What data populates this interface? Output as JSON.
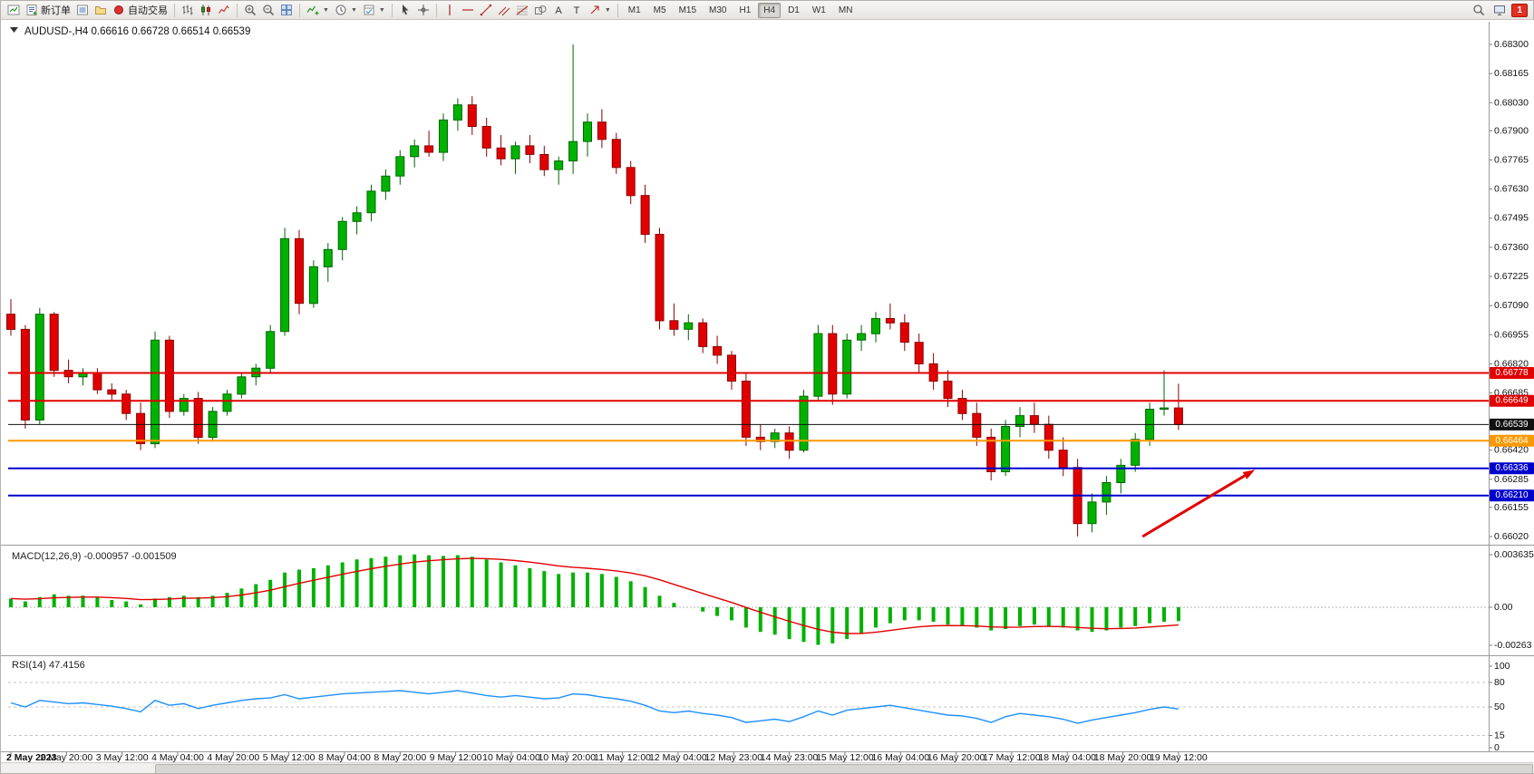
{
  "window": {
    "symbol_title": "AUDUSD-,H4",
    "ohlc_text": "0.66616 0.66728 0.66514 0.66539"
  },
  "toolbar": {
    "groups": [
      [
        {
          "icon": "new-chart"
        },
        {
          "icon": "new-order",
          "label": "新订单"
        },
        {
          "icon": "market-watch"
        },
        {
          "icon": "navigator"
        },
        {
          "icon": "auto-trading",
          "label": "自动交易"
        }
      ],
      [
        {
          "icon": "bar-chart"
        },
        {
          "icon": "candlestick-chart"
        },
        {
          "icon": "line-chart"
        }
      ],
      [
        {
          "icon": "zoom-in"
        },
        {
          "icon": "zoom-out"
        },
        {
          "icon": "tile-windows"
        }
      ],
      [
        {
          "icon": "indicators",
          "dropdown": true
        },
        {
          "icon": "periods",
          "dropdown": true
        },
        {
          "icon": "template",
          "dropdown": true
        }
      ],
      [
        {
          "icon": "cursor"
        },
        {
          "icon": "crosshair"
        }
      ],
      [
        {
          "icon": "vertical-line"
        },
        {
          "icon": "horizontal-line"
        },
        {
          "icon": "trend-line"
        },
        {
          "icon": "channel"
        },
        {
          "icon": "fibonacci"
        },
        {
          "icon": "shapes"
        },
        {
          "icon": "text"
        },
        {
          "icon": "text-label"
        },
        {
          "icon": "arrows",
          "dropdown": true
        }
      ]
    ],
    "timeframes": [
      {
        "label": "M1"
      },
      {
        "label": "M5"
      },
      {
        "label": "M15"
      },
      {
        "label": "M30"
      },
      {
        "label": "H1"
      },
      {
        "label": "H4",
        "active": true
      },
      {
        "label": "D1"
      },
      {
        "label": "W1"
      },
      {
        "label": "MN"
      }
    ],
    "right_icons": [
      {
        "icon": "search"
      },
      {
        "icon": "terminal"
      }
    ],
    "notification_badge": "1"
  },
  "chart_data": {
    "type": "candlestick",
    "title": "AUDUSD-,H4",
    "ohlc_display": "0.66616 0.66728 0.66514 0.66539",
    "bull_color": "#00b200",
    "bear_color": "#e10000",
    "y_axis": {
      "min": 0.6602,
      "max": 0.683,
      "tick_labels": [
        "0.68300",
        "0.68165",
        "0.68030",
        "0.67900",
        "0.67765",
        "0.67630",
        "0.67495",
        "0.67360",
        "0.67225",
        "0.67090",
        "0.66955",
        "0.66820",
        "0.66685",
        "0.66420",
        "0.66285",
        "0.66155",
        "0.66020"
      ]
    },
    "x_axis": {
      "tick_labels": [
        "2 May 2023",
        "2 May 20:00",
        "3 May 12:00",
        "4 May 04:00",
        "4 May 20:00",
        "5 May 12:00",
        "8 May 04:00",
        "8 May 20:00",
        "9 May 12:00",
        "10 May 04:00",
        "10 May 20:00",
        "11 May 12:00",
        "12 May 04:00",
        "12 May 23:00",
        "14 May 23:00",
        "15 May 12:00",
        "16 May 04:00",
        "16 May 20:00",
        "17 May 12:00",
        "18 May 04:00",
        "18 May 20:00",
        "19 May 12:00"
      ]
    },
    "candles": [
      [
        0.6705,
        0.6712,
        0.6695,
        0.6698
      ],
      [
        0.6698,
        0.67,
        0.6652,
        0.6656
      ],
      [
        0.6656,
        0.6708,
        0.6654,
        0.6705
      ],
      [
        0.6705,
        0.6706,
        0.6676,
        0.6679
      ],
      [
        0.6679,
        0.6684,
        0.6673,
        0.6676
      ],
      [
        0.6676,
        0.668,
        0.6672,
        0.6678
      ],
      [
        0.6678,
        0.668,
        0.6668,
        0.667
      ],
      [
        0.667,
        0.6673,
        0.6665,
        0.6668
      ],
      [
        0.6668,
        0.667,
        0.6656,
        0.6659
      ],
      [
        0.6659,
        0.6664,
        0.6642,
        0.6645
      ],
      [
        0.6645,
        0.6697,
        0.6643,
        0.6693
      ],
      [
        0.6693,
        0.6695,
        0.6657,
        0.666
      ],
      [
        0.666,
        0.6668,
        0.6658,
        0.6666
      ],
      [
        0.6666,
        0.6669,
        0.6645,
        0.6648
      ],
      [
        0.6648,
        0.6662,
        0.6646,
        0.666
      ],
      [
        0.666,
        0.667,
        0.6658,
        0.6668
      ],
      [
        0.6668,
        0.6678,
        0.6666,
        0.6676
      ],
      [
        0.6676,
        0.6682,
        0.6672,
        0.668
      ],
      [
        0.668,
        0.67,
        0.6678,
        0.6697
      ],
      [
        0.6697,
        0.6745,
        0.6695,
        0.674
      ],
      [
        0.674,
        0.6744,
        0.6705,
        0.671
      ],
      [
        0.671,
        0.673,
        0.6708,
        0.6727
      ],
      [
        0.6727,
        0.6738,
        0.672,
        0.6735
      ],
      [
        0.6735,
        0.675,
        0.673,
        0.6748
      ],
      [
        0.6748,
        0.6755,
        0.6742,
        0.6752
      ],
      [
        0.6752,
        0.6765,
        0.6748,
        0.6762
      ],
      [
        0.6762,
        0.6772,
        0.6758,
        0.6769
      ],
      [
        0.6769,
        0.6781,
        0.6765,
        0.6778
      ],
      [
        0.6778,
        0.6786,
        0.6773,
        0.6783
      ],
      [
        0.6783,
        0.679,
        0.6778,
        0.678
      ],
      [
        0.678,
        0.6798,
        0.6776,
        0.6795
      ],
      [
        0.6795,
        0.6805,
        0.679,
        0.6802
      ],
      [
        0.6802,
        0.6806,
        0.6788,
        0.6792
      ],
      [
        0.6792,
        0.6796,
        0.6778,
        0.6782
      ],
      [
        0.6782,
        0.6788,
        0.6774,
        0.6777
      ],
      [
        0.6777,
        0.6785,
        0.677,
        0.6783
      ],
      [
        0.6783,
        0.6788,
        0.6775,
        0.6779
      ],
      [
        0.6779,
        0.6783,
        0.6769,
        0.6772
      ],
      [
        0.6772,
        0.6778,
        0.6765,
        0.6776
      ],
      [
        0.6776,
        0.683,
        0.677,
        0.6785
      ],
      [
        0.6785,
        0.6798,
        0.6778,
        0.6794
      ],
      [
        0.6794,
        0.68,
        0.6782,
        0.6786
      ],
      [
        0.6786,
        0.6789,
        0.677,
        0.6773
      ],
      [
        0.6773,
        0.6776,
        0.6756,
        0.676
      ],
      [
        0.676,
        0.6765,
        0.6738,
        0.6742
      ],
      [
        0.6742,
        0.6745,
        0.6698,
        0.6702
      ],
      [
        0.6702,
        0.671,
        0.6695,
        0.6698
      ],
      [
        0.6698,
        0.6705,
        0.6693,
        0.6701
      ],
      [
        0.6701,
        0.6703,
        0.6687,
        0.669
      ],
      [
        0.669,
        0.6695,
        0.6682,
        0.6686
      ],
      [
        0.6686,
        0.6688,
        0.667,
        0.6674
      ],
      [
        0.6674,
        0.6678,
        0.6644,
        0.6648
      ],
      [
        0.6648,
        0.6654,
        0.6642,
        0.6646
      ],
      [
        0.6646,
        0.6652,
        0.6643,
        0.665
      ],
      [
        0.665,
        0.6653,
        0.6638,
        0.6642
      ],
      [
        0.6642,
        0.667,
        0.6641,
        0.6667
      ],
      [
        0.6667,
        0.67,
        0.6665,
        0.6696
      ],
      [
        0.6696,
        0.67,
        0.6663,
        0.6668
      ],
      [
        0.6668,
        0.6696,
        0.6666,
        0.6693
      ],
      [
        0.6693,
        0.67,
        0.6688,
        0.6696
      ],
      [
        0.6696,
        0.6706,
        0.6692,
        0.6703
      ],
      [
        0.6703,
        0.671,
        0.6698,
        0.6701
      ],
      [
        0.6701,
        0.6705,
        0.6688,
        0.6692
      ],
      [
        0.6692,
        0.6696,
        0.6678,
        0.6682
      ],
      [
        0.6682,
        0.6687,
        0.667,
        0.6674
      ],
      [
        0.6674,
        0.6679,
        0.6662,
        0.6666
      ],
      [
        0.6666,
        0.667,
        0.6656,
        0.6659
      ],
      [
        0.6659,
        0.6664,
        0.6644,
        0.6648
      ],
      [
        0.6648,
        0.6652,
        0.6628,
        0.6632
      ],
      [
        0.6632,
        0.6656,
        0.663,
        0.6653
      ],
      [
        0.6653,
        0.6662,
        0.6648,
        0.6658
      ],
      [
        0.6658,
        0.6664,
        0.665,
        0.6654
      ],
      [
        0.6654,
        0.6658,
        0.6638,
        0.6642
      ],
      [
        0.6642,
        0.6648,
        0.663,
        0.6634
      ],
      [
        0.6634,
        0.6638,
        0.6602,
        0.6608
      ],
      [
        0.6608,
        0.6622,
        0.6604,
        0.6618
      ],
      [
        0.6618,
        0.663,
        0.6612,
        0.6627
      ],
      [
        0.6627,
        0.6638,
        0.6622,
        0.6635
      ],
      [
        0.6635,
        0.665,
        0.6632,
        0.6647
      ],
      [
        0.6647,
        0.6664,
        0.6644,
        0.6661
      ],
      [
        0.6661,
        0.6679,
        0.6658,
        0.66616
      ],
      [
        0.66616,
        0.66728,
        0.66514,
        0.66539
      ]
    ],
    "hlines": [
      {
        "price": 0.66778,
        "label": "0.66778",
        "color": "#e10000",
        "width": 2
      },
      {
        "price": 0.66649,
        "label": "0.66649",
        "color": "#e10000",
        "width": 2
      },
      {
        "price": 0.66539,
        "label": "0.66539",
        "color": "#111111",
        "width": 1
      },
      {
        "price": 0.66464,
        "label": "0.66464",
        "color": "#ff9800",
        "width": 2
      },
      {
        "price": 0.66336,
        "label": "0.66336",
        "color": "#0000cd",
        "width": 2
      },
      {
        "price": 0.6621,
        "label": "0.66210",
        "color": "#0000cd",
        "width": 2
      }
    ],
    "arrow": {
      "color": "#e10000",
      "from": {
        "index": 78.5,
        "price": 0.6602
      },
      "to": {
        "index": 86.3,
        "price": 0.6633
      }
    },
    "indicators": [
      {
        "type": "macd",
        "label": "MACD(12,26,9)",
        "values_text": "-0.000957 -0.001509",
        "axis_labels": [
          "0.003635",
          "0.00",
          "-0.00263"
        ],
        "histogram_color": "#00b200",
        "signal_color": "#e10000",
        "histogram": [
          0.0006,
          0.0004,
          0.0007,
          0.0009,
          0.0008,
          0.0008,
          0.0007,
          0.0005,
          0.0004,
          0.0002,
          0.0006,
          0.0007,
          0.0008,
          0.0007,
          0.0008,
          0.001,
          0.0013,
          0.0016,
          0.0019,
          0.0024,
          0.0026,
          0.0027,
          0.0029,
          0.0031,
          0.0033,
          0.0034,
          0.0035,
          0.0036,
          0.00365,
          0.0036,
          0.00355,
          0.0036,
          0.0035,
          0.0033,
          0.0031,
          0.0029,
          0.0027,
          0.0025,
          0.0023,
          0.0024,
          0.0024,
          0.0023,
          0.0021,
          0.0018,
          0.0014,
          0.0008,
          0.0003,
          0.0,
          -0.0003,
          -0.0006,
          -0.0009,
          -0.0014,
          -0.0017,
          -0.0019,
          -0.0022,
          -0.0024,
          -0.0026,
          -0.0025,
          -0.0022,
          -0.0018,
          -0.0014,
          -0.0011,
          -0.0009,
          -0.0009,
          -0.001,
          -0.0012,
          -0.0013,
          -0.0014,
          -0.0016,
          -0.0015,
          -0.0013,
          -0.0012,
          -0.0013,
          -0.0014,
          -0.0016,
          -0.0017,
          -0.0016,
          -0.0014,
          -0.0013,
          -0.0011,
          -0.001,
          -0.000957
        ]
      },
      {
        "type": "rsi",
        "label": "RSI(14)",
        "value_text": "47.4156",
        "axis_labels": [
          "100",
          "80",
          "50",
          "15",
          "0"
        ],
        "levels": [
          80,
          50,
          15
        ],
        "line_color": "#1e90ff",
        "values": [
          55,
          50,
          58,
          56,
          54,
          55,
          53,
          51,
          48,
          44,
          58,
          52,
          54,
          48,
          52,
          55,
          58,
          60,
          61,
          65,
          60,
          62,
          64,
          66,
          67,
          68,
          69,
          70,
          68,
          66,
          68,
          70,
          67,
          64,
          62,
          64,
          62,
          60,
          61,
          66,
          65,
          62,
          60,
          57,
          52,
          45,
          43,
          45,
          42,
          40,
          37,
          31,
          33,
          35,
          32,
          38,
          45,
          40,
          46,
          48,
          50,
          52,
          49,
          46,
          43,
          40,
          39,
          36,
          31,
          38,
          42,
          40,
          38,
          35,
          30,
          34,
          37,
          40,
          43,
          47,
          50,
          47.4
        ]
      }
    ]
  }
}
